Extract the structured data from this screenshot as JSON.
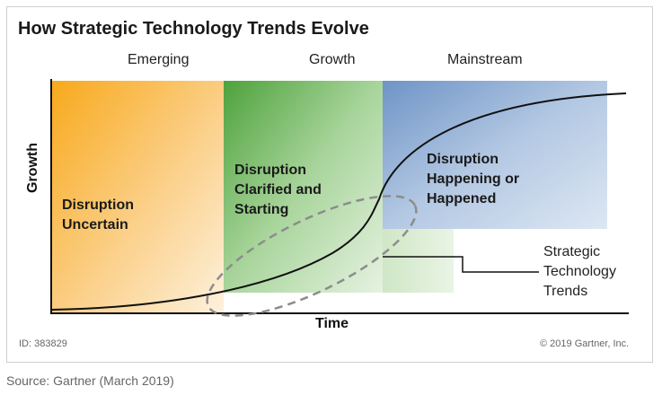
{
  "title": "How Strategic Technology Trends Evolve",
  "phases": {
    "emerging": "Emerging",
    "growth": "Growth",
    "mainstream": "Mainstream"
  },
  "axes": {
    "y": "Growth",
    "x": "Time"
  },
  "zones": {
    "uncertain": "Disruption\nUncertain",
    "clarified": "Disruption\nClarified and\nStarting",
    "happening": "Disruption\nHappening or\nHappened"
  },
  "callout": "Strategic\nTechnology\nTrends",
  "footer": {
    "id": "ID: 383829",
    "copyright": "© 2019 Gartner, Inc."
  },
  "source": "Source: Gartner (March 2019)",
  "colors": {
    "emerging": "#f9b233",
    "growth": "#5aa845",
    "mainstream": "#6f96c8",
    "curve": "#111111",
    "ellipse": "#888888"
  }
}
